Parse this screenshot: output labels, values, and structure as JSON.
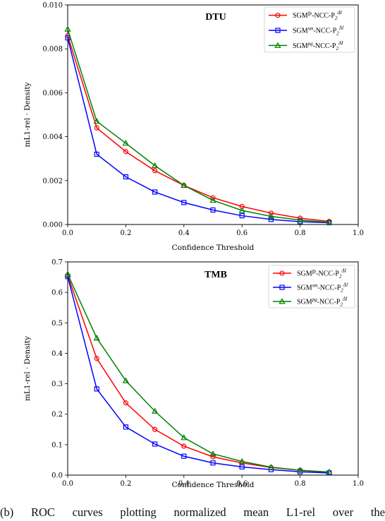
{
  "chart_data": [
    {
      "type": "line",
      "title": "DTU",
      "xlabel": "Confidence Threshold",
      "ylabel": "mL1-rel · Density",
      "xlim": [
        0.0,
        1.0
      ],
      "ylim": [
        0.0,
        0.01
      ],
      "xticks": [
        "0.0",
        "0.2",
        "0.4",
        "0.6",
        "0.8",
        "1.0"
      ],
      "yticks": [
        "0.000",
        "0.002",
        "0.004",
        "0.006",
        "0.008",
        "0.010"
      ],
      "grid": false,
      "legend_position": "top-right",
      "x": [
        0.0,
        0.1,
        0.2,
        0.3,
        0.4,
        0.5,
        0.6,
        0.7,
        0.8,
        0.9
      ],
      "series": [
        {
          "name": "SGM^fp-NCC-P2^ΔI",
          "color": "#ff0000",
          "marker": "circle",
          "values": [
            0.0086,
            0.0044,
            0.00332,
            0.00245,
            0.00178,
            0.00122,
            0.00082,
            0.00052,
            0.00029,
            0.00014
          ]
        },
        {
          "name": "SGM^sm-NCC-P2^ΔI",
          "color": "#0000ff",
          "marker": "square",
          "values": [
            0.0085,
            0.0032,
            0.00217,
            0.00148,
            0.001,
            0.00066,
            0.0004,
            0.00023,
            0.00013,
            8e-05
          ]
        },
        {
          "name": "SGM^pg-NCC-P2^ΔI",
          "color": "#008000",
          "marker": "triangle",
          "values": [
            0.0089,
            0.0047,
            0.0037,
            0.00268,
            0.00178,
            0.0011,
            0.00064,
            0.00037,
            0.0002,
            0.0001
          ]
        }
      ]
    },
    {
      "type": "line",
      "title": "TMB",
      "xlabel": "Confidence Threshold",
      "ylabel": "mL1-rel · Density",
      "xlim": [
        0.0,
        1.0
      ],
      "ylim": [
        0.0,
        0.7
      ],
      "xticks": [
        "0.0",
        "0.2",
        "0.4",
        "0.6",
        "0.8",
        "1.0"
      ],
      "yticks": [
        "0.0",
        "0.1",
        "0.2",
        "0.3",
        "0.4",
        "0.5",
        "0.6",
        "0.7"
      ],
      "grid": false,
      "legend_position": "top-right",
      "x": [
        0.0,
        0.1,
        0.2,
        0.3,
        0.4,
        0.5,
        0.6,
        0.7,
        0.8,
        0.9
      ],
      "series": [
        {
          "name": "SGM^fp-NCC-P2^ΔI",
          "color": "#ff0000",
          "marker": "circle",
          "values": [
            0.655,
            0.383,
            0.237,
            0.15,
            0.095,
            0.06,
            0.04,
            0.025,
            0.016,
            0.009
          ]
        },
        {
          "name": "SGM^sm-NCC-P2^ΔI",
          "color": "#0000ff",
          "marker": "square",
          "values": [
            0.652,
            0.283,
            0.158,
            0.102,
            0.062,
            0.04,
            0.027,
            0.018,
            0.011,
            0.007
          ]
        },
        {
          "name": "SGM^pg-NCC-P2^ΔI",
          "color": "#008000",
          "marker": "triangle",
          "values": [
            0.66,
            0.45,
            0.31,
            0.21,
            0.123,
            0.07,
            0.045,
            0.026,
            0.016,
            0.01
          ]
        }
      ]
    }
  ],
  "caption": "(b) ROC curves plotting normalized mean L1-rel over the"
}
